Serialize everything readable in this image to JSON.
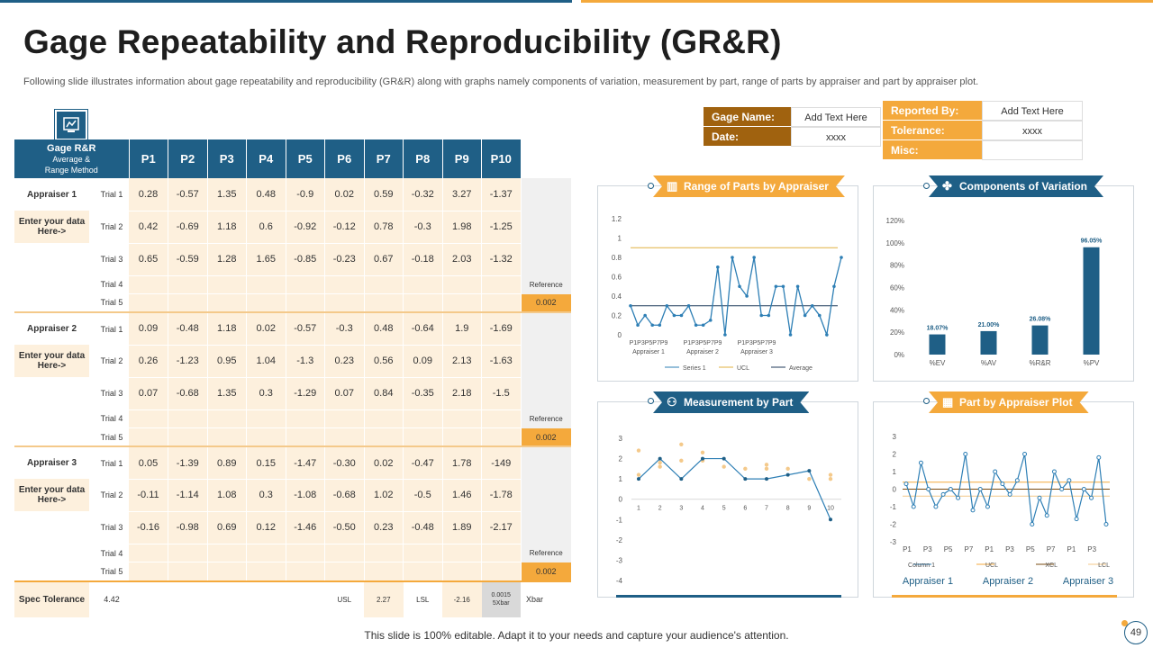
{
  "title": "Gage Repeatability and Reproducibility (GR&R)",
  "subtitle": "Following slide illustrates information about gage repeatability and reproducibility (GR&R) along with graphs namely components of variation, measurement by part, range of parts by appraiser and part by appraiser plot.",
  "table": {
    "header_main": "Gage R&R",
    "header_sub": "Average &",
    "header_sub2": "Range Method",
    "columns": [
      "P1",
      "P2",
      "P3",
      "P4",
      "P5",
      "P6",
      "P7",
      "P8",
      "P9",
      "P10"
    ],
    "reference_label": "Reference",
    "reference_value": "0.002",
    "enter_label": "Enter your data Here->",
    "appraisers": [
      {
        "name": "Appraiser 1",
        "trials": [
          {
            "label": "Trial 1",
            "values": [
              "0.28",
              "-0.57",
              "1.35",
              "0.48",
              "-0.9",
              "0.02",
              "0.59",
              "-0.32",
              "3.27",
              "-1.37"
            ]
          },
          {
            "label": "Trial 2",
            "values": [
              "0.42",
              "-0.69",
              "1.18",
              "0.6",
              "-0.92",
              "-0.12",
              "0.78",
              "-0.3",
              "1.98",
              "-1.25"
            ]
          },
          {
            "label": "Trial 3",
            "values": [
              "0.65",
              "-0.59",
              "1.28",
              "1.65",
              "-0.85",
              "-0.23",
              "0.67",
              "-0.18",
              "2.03",
              "-1.32"
            ]
          },
          {
            "label": "Trial 4",
            "values": [
              "",
              "",
              "",
              "",
              "",
              "",
              "",
              "",
              "",
              ""
            ]
          },
          {
            "label": "Trial 5",
            "values": [
              "",
              "",
              "",
              "",
              "",
              "",
              "",
              "",
              "",
              ""
            ]
          }
        ]
      },
      {
        "name": "Appraiser 2",
        "trials": [
          {
            "label": "Trial 1",
            "values": [
              "0.09",
              "-0.48",
              "1.18",
              "0.02",
              "-0.57",
              "-0.3",
              "0.48",
              "-0.64",
              "1.9",
              "-1.69"
            ]
          },
          {
            "label": "Trial 2",
            "values": [
              "0.26",
              "-1.23",
              "0.95",
              "1.04",
              "-1.3",
              "0.23",
              "0.56",
              "0.09",
              "2.13",
              "-1.63"
            ]
          },
          {
            "label": "Trial 3",
            "values": [
              "0.07",
              "-0.68",
              "1.35",
              "0.3",
              "-1.29",
              "0.07",
              "0.84",
              "-0.35",
              "2.18",
              "-1.5"
            ]
          },
          {
            "label": "Trial 4",
            "values": [
              "",
              "",
              "",
              "",
              "",
              "",
              "",
              "",
              "",
              ""
            ]
          },
          {
            "label": "Trial 5",
            "values": [
              "",
              "",
              "",
              "",
              "",
              "",
              "",
              "",
              "",
              ""
            ]
          }
        ]
      },
      {
        "name": "Appraiser 3",
        "trials": [
          {
            "label": "Trial 1",
            "values": [
              "0.05",
              "-1.39",
              "0.89",
              "0.15",
              "-1.47",
              "-0.30",
              "0.02",
              "-0.47",
              "1.78",
              "-149"
            ]
          },
          {
            "label": "Trial 2",
            "values": [
              "-0.11",
              "-1.14",
              "1.08",
              "0.3",
              "-1.08",
              "-0.68",
              "1.02",
              "-0.5",
              "1.46",
              "-1.78"
            ]
          },
          {
            "label": "Trial 3",
            "values": [
              "-0.16",
              "-0.98",
              "0.69",
              "0.12",
              "-1.46",
              "-0.50",
              "0.23",
              "-0.48",
              "1.89",
              "-2.17"
            ]
          },
          {
            "label": "Trial 4",
            "values": [
              "",
              "",
              "",
              "",
              "",
              "",
              "",
              "",
              "",
              ""
            ]
          },
          {
            "label": "Trial 5",
            "values": [
              "",
              "",
              "",
              "",
              "",
              "",
              "",
              "",
              "",
              ""
            ]
          }
        ]
      }
    ],
    "spec": {
      "label": "Spec Tolerance",
      "value": "4.42",
      "usl_label": "USL",
      "usl": "2.27",
      "lsl_label": "LSL",
      "lsl": "-2.16",
      "xbar_val1": "0.0015",
      "xbar_val2": "5Xbar",
      "xbar_label": "Xbar"
    }
  },
  "info_left": [
    {
      "label": "Gage Name:",
      "value": "Add Text Here"
    },
    {
      "label": "Date:",
      "value": "xxxx"
    }
  ],
  "info_right": [
    {
      "label": "Reported By:",
      "value": "Add Text Here"
    },
    {
      "label": "Tolerance:",
      "value": "xxxx"
    },
    {
      "label": "Misc:",
      "value": ""
    }
  ],
  "colors": {
    "blue": "#1f5f86",
    "orange": "#f4a93c",
    "brown": "#a0620f",
    "light": "#fdf0dd"
  },
  "panels": {
    "range": "Range of Parts by Appraiser",
    "components": "Components of Variation",
    "measurement": "Measurement by Part",
    "part_appraiser": "Part by Appraiser Plot"
  },
  "chart_data": [
    {
      "type": "line",
      "title": "Range of Parts by Appraiser",
      "yticks": [
        "0",
        "0.2",
        "0.4",
        "0.6",
        "0.8",
        "1",
        "1.2"
      ],
      "ylim": [
        0,
        1.2
      ],
      "x_tick_labels": [
        "P1P3P5P7P9",
        "P1P3P5P7P9",
        "P1P3P5P7P9"
      ],
      "x_group_labels": [
        "Appraiser 1",
        "Appraiser 2",
        "Appraiser 3"
      ],
      "series": [
        {
          "name": "Series 1",
          "values": [
            0.3,
            0.1,
            0.2,
            0.1,
            0.1,
            0.3,
            0.2,
            0.2,
            0.3,
            0.1,
            0.1,
            0.15,
            0.7,
            0.0,
            0.8,
            0.5,
            0.4,
            0.8,
            0.2,
            0.2,
            0.5,
            0.5,
            0.0,
            0.5,
            0.2,
            0.3,
            0.2,
            0.0,
            0.5,
            0.8
          ]
        },
        {
          "name": "UCL",
          "values": [
            0.9
          ]
        },
        {
          "name": "Average",
          "values": [
            0.3
          ]
        }
      ]
    },
    {
      "type": "bar",
      "title": "Components of Variation",
      "categories": [
        "%EV",
        "%AV",
        "%R&R",
        "%PV"
      ],
      "values": [
        18.07,
        21.0,
        26.08,
        96.05
      ],
      "value_labels": [
        "18.07%",
        "21.00%",
        "26.08%",
        "96.05%"
      ],
      "yticks": [
        "0%",
        "20%",
        "40%",
        "60%",
        "80%",
        "100%",
        "120%"
      ],
      "ylim": [
        0,
        120
      ]
    },
    {
      "type": "scatter",
      "title": "Measurement by Part",
      "x": [
        1,
        2,
        3,
        4,
        5,
        6,
        7,
        8,
        9,
        10
      ],
      "xticks": [
        "1",
        "2",
        "3",
        "4",
        "5",
        "6",
        "7",
        "8",
        "9",
        "10"
      ],
      "yticks": [
        "3",
        "2",
        "1",
        "0",
        "-1",
        "-2",
        "-3",
        "-4"
      ],
      "ylim": [
        -4,
        3
      ],
      "line": [
        1.0,
        2.0,
        1.0,
        2.0,
        2.0,
        1.0,
        1.0,
        1.2,
        1.4,
        -1.0
      ],
      "points_orange": [
        [
          1,
          2.4
        ],
        [
          1,
          1.2
        ],
        [
          2,
          1.8
        ],
        [
          2,
          1.6
        ],
        [
          3,
          2.7
        ],
        [
          3,
          1.9
        ],
        [
          4,
          2.3
        ],
        [
          4,
          1.9
        ],
        [
          5,
          1.6
        ],
        [
          6,
          1.5
        ],
        [
          7,
          1.7
        ],
        [
          7,
          1.5
        ],
        [
          8,
          1.5
        ],
        [
          9,
          1.0
        ],
        [
          10,
          1.2
        ],
        [
          10,
          1.0
        ]
      ]
    },
    {
      "type": "line",
      "title": "Part by Appraiser Plot",
      "yticks": [
        "3",
        "2",
        "1",
        "0",
        "-1",
        "-2",
        "-3"
      ],
      "ylim": [
        -3,
        3
      ],
      "xticks": [
        "P1",
        "P3",
        "P5",
        "P7",
        "P1",
        "P3",
        "P5",
        "P7",
        "P1",
        "P3"
      ],
      "x_group_labels": [
        "Appraiser 1",
        "Appraiser 2",
        "Appraiser 3"
      ],
      "series": [
        {
          "name": "Column 1",
          "values": [
            0.3,
            -1.0,
            1.5,
            0.0,
            -1.0,
            -0.3,
            0.0,
            -0.5,
            2.0,
            -1.2,
            0.0,
            -1.0,
            1.0,
            0.3,
            -0.3,
            0.5,
            2.0,
            -2.0,
            -0.5,
            -1.5,
            1.0,
            0.0,
            0.5,
            -1.7,
            0.0,
            -0.5,
            1.8,
            -2.0
          ]
        },
        {
          "name": "UCL",
          "values": [
            0.4
          ]
        },
        {
          "name": "XCL",
          "values": [
            0.0
          ]
        },
        {
          "name": "LCL",
          "values": [
            -0.4
          ]
        }
      ]
    }
  ],
  "footer": "This slide is 100% editable. Adapt it to your needs and capture your audience's attention.",
  "page_number": "49"
}
